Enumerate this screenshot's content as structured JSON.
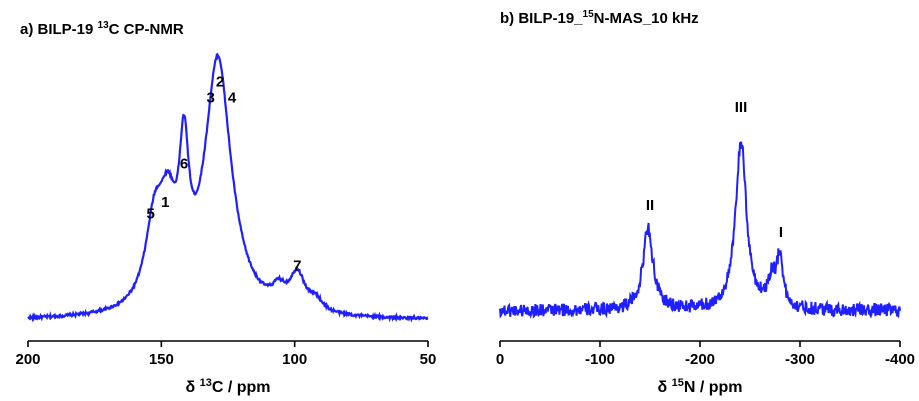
{
  "chart_data": [
    {
      "type": "line",
      "title_prefix": "a) BILP-19 ",
      "title_sup": "13",
      "title_suffix": "C CP-NMR",
      "xlabel_prefix": "δ ",
      "xlabel_sup": "13",
      "xlabel_suffix": "C / ppm",
      "xlim": [
        200,
        50
      ],
      "xticks": [
        200,
        150,
        100,
        50
      ],
      "xtick_labels": [
        "200",
        "150",
        "100",
        "50"
      ],
      "ylim": [
        0,
        100
      ],
      "line_color": "#1f1fff",
      "noise": 0.6,
      "baseline": 2,
      "peaks": [
        {
          "center": 152.5,
          "height": 36,
          "width": 4.2
        },
        {
          "center": 147.5,
          "height": 34,
          "width": 3.6
        },
        {
          "center": 141.5,
          "height": 57,
          "width": 2.2
        },
        {
          "center": 131.0,
          "height": 38,
          "width": 6.0
        },
        {
          "center": 128.5,
          "height": 55,
          "width": 4.5
        },
        {
          "center": 126.0,
          "height": 28,
          "width": 7.0
        },
        {
          "center": 106.0,
          "height": 7,
          "width": 3.0
        },
        {
          "center": 99.0,
          "height": 16,
          "width": 3.5
        },
        {
          "center": 92.0,
          "height": 5,
          "width": 3.0
        }
      ],
      "annotations": [
        {
          "text": "5",
          "x": 154.0,
          "y": 47
        },
        {
          "text": "1",
          "x": 148.5,
          "y": 52
        },
        {
          "text": "6",
          "x": 141.5,
          "y": 69
        },
        {
          "text": "3",
          "x": 131.5,
          "y": 98
        },
        {
          "text": "2",
          "x": 128.0,
          "y": 105
        },
        {
          "text": "4",
          "x": 123.5,
          "y": 98
        },
        {
          "text": "7",
          "x": 99.0,
          "y": 24
        }
      ]
    },
    {
      "type": "line",
      "title_prefix": "b) BILP-19_",
      "title_sup": "15",
      "title_suffix": "N-MAS_10 kHz",
      "xlabel_prefix": "δ ",
      "xlabel_sup": "15",
      "xlabel_suffix": "N / ppm",
      "xlim": [
        0,
        -400
      ],
      "xticks": [
        0,
        -100,
        -200,
        -300,
        -400
      ],
      "xtick_labels": [
        "0",
        "-100",
        "-200",
        "-300",
        "-400"
      ],
      "ylim": [
        0,
        100
      ],
      "line_color": "#1f1fff",
      "noise": 3.2,
      "baseline": 7,
      "peaks": [
        {
          "center": -148,
          "height": 40,
          "width": 6.0
        },
        {
          "center": -241,
          "height": 82,
          "width": 6.5
        },
        {
          "center": -272,
          "height": 14,
          "width": 5.0
        },
        {
          "center": -280,
          "height": 24,
          "width": 3.5
        }
      ],
      "annotations": [
        {
          "text": "II",
          "x": -150,
          "y": 56
        },
        {
          "text": "III",
          "x": -241,
          "y": 104
        },
        {
          "text": "I",
          "x": -281,
          "y": 43
        }
      ]
    }
  ]
}
